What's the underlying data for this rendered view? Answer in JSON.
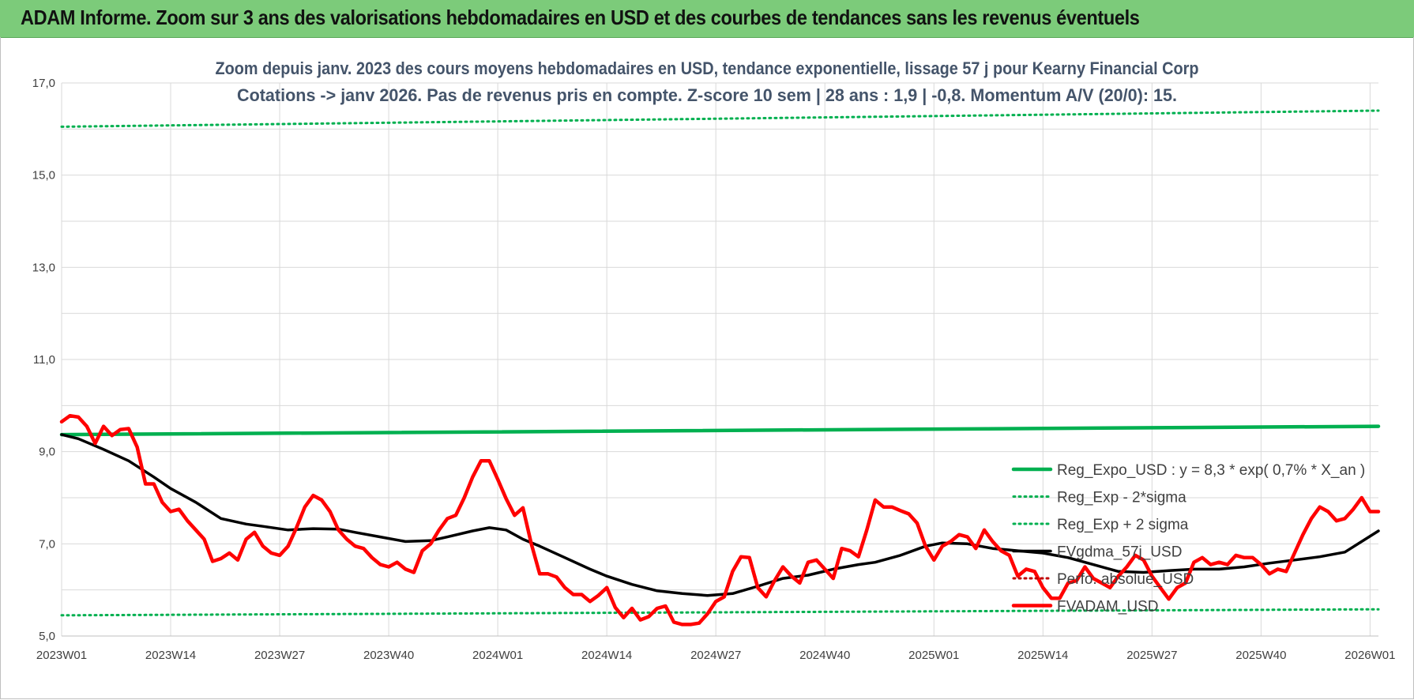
{
  "banner": {
    "title": "ADAM Informe. Zoom sur 3 ans des valorisations hebdomadaires en USD et des courbes de tendances sans les revenus éventuels"
  },
  "colors": {
    "banner": "#7ccb7a",
    "regression": "#00b050",
    "fvgdma": "#000000",
    "fvadam": "#ff0000",
    "perfo": "#c00000",
    "grid": "#d9d9d9"
  },
  "chart_data": {
    "type": "line",
    "title": "Zoom depuis janv. 2023 des cours moyens hebdomadaires en USD, tendance exponentielle, lissage 57 j pour Kearny Financial Corp",
    "subtitle": "Cotations -> janv 2026. Pas de revenus pris en compte. Z-score 10 sem | 28 ans : 1,9 | -0,8. Momentum A/V (20/0): 15.",
    "xlabel": "",
    "ylabel": "",
    "ylim": [
      5.0,
      17.0
    ],
    "y_ticks": [
      "5,0",
      "7,0",
      "9,0",
      "11,0",
      "13,0",
      "15,0",
      "17,0"
    ],
    "x_ticks": [
      "2023W01",
      "2023W14",
      "2023W27",
      "2023W40",
      "2024W01",
      "2024W14",
      "2024W27",
      "2024W40",
      "2025W01",
      "2025W14",
      "2025W27",
      "2025W40",
      "2026W01"
    ],
    "grid": true,
    "legend_position": "bottom-right",
    "series": [
      {
        "name": "Reg_Expo_USD : y = 8,3 * exp( 0,7% * X_an )",
        "style": "solid-thick",
        "color": "#00b050",
        "x": [
          0,
          157
        ],
        "y": [
          9.37,
          9.55
        ]
      },
      {
        "name": "Reg_Exp - 2*sigma",
        "style": "dotted",
        "color": "#00b050",
        "x": [
          0,
          157
        ],
        "y": [
          5.45,
          5.58
        ]
      },
      {
        "name": "Reg_Exp + 2 sigma",
        "style": "dotted",
        "color": "#00b050",
        "x": [
          0,
          157
        ],
        "y": [
          16.05,
          16.4
        ]
      },
      {
        "name": "FVgdma_57j_USD",
        "style": "solid",
        "color": "#000000",
        "x": [
          0,
          2,
          5,
          8,
          11,
          13,
          16,
          19,
          22,
          24,
          27,
          30,
          33,
          35,
          38,
          41,
          44,
          46,
          49,
          51,
          53,
          55,
          57,
          60,
          63,
          65,
          68,
          71,
          74,
          77,
          80,
          83,
          86,
          89,
          92,
          95,
          97,
          100,
          103,
          105,
          108,
          111,
          114,
          117,
          120,
          123,
          126,
          129,
          132,
          135,
          138,
          141,
          144,
          147,
          150,
          153,
          155,
          157
        ],
        "y": [
          9.37,
          9.28,
          9.05,
          8.8,
          8.45,
          8.2,
          7.9,
          7.55,
          7.43,
          7.38,
          7.3,
          7.33,
          7.32,
          7.25,
          7.15,
          7.05,
          7.07,
          7.15,
          7.28,
          7.35,
          7.3,
          7.1,
          6.95,
          6.7,
          6.45,
          6.3,
          6.12,
          5.98,
          5.92,
          5.88,
          5.92,
          6.08,
          6.25,
          6.32,
          6.45,
          6.55,
          6.6,
          6.75,
          6.95,
          7.02,
          7.0,
          6.9,
          6.85,
          6.8,
          6.7,
          6.55,
          6.4,
          6.38,
          6.42,
          6.45,
          6.45,
          6.5,
          6.58,
          6.65,
          6.72,
          6.82,
          7.05,
          7.28
        ]
      },
      {
        "name": "Perfo. absolue_USD",
        "style": "dotted",
        "color": "#c00000",
        "x": [],
        "y": []
      },
      {
        "name": "FVADAM_USD",
        "style": "solid-thick",
        "color": "#ff0000",
        "x": [
          0,
          1,
          2,
          3,
          4,
          5,
          6,
          7,
          8,
          9,
          10,
          11,
          12,
          13,
          14,
          15,
          16,
          17,
          18,
          19,
          20,
          21,
          22,
          23,
          24,
          25,
          26,
          27,
          28,
          29,
          30,
          31,
          32,
          33,
          34,
          35,
          36,
          37,
          38,
          39,
          40,
          41,
          42,
          43,
          44,
          45,
          46,
          47,
          48,
          49,
          50,
          51,
          52,
          53,
          54,
          55,
          56,
          57,
          58,
          59,
          60,
          61,
          62,
          63,
          64,
          65,
          66,
          67,
          68,
          69,
          70,
          71,
          72,
          73,
          74,
          75,
          76,
          77,
          78,
          79,
          80,
          81,
          82,
          83,
          84,
          85,
          86,
          87,
          88,
          89,
          90,
          91,
          92,
          93,
          94,
          95,
          96,
          97,
          98,
          99,
          100,
          101,
          102,
          103,
          104,
          105,
          106,
          107,
          108,
          109,
          110,
          111,
          112,
          113,
          114,
          115,
          116,
          117,
          118,
          119,
          120,
          121,
          122,
          123,
          124,
          125,
          126,
          127,
          128,
          129,
          130,
          131,
          132,
          133,
          134,
          135,
          136,
          137,
          138,
          139,
          140,
          141,
          142,
          143,
          144,
          145,
          146,
          147,
          148,
          149,
          150,
          151,
          152,
          153,
          154,
          155,
          156,
          157
        ],
        "y": [
          9.65,
          9.78,
          9.75,
          9.55,
          9.18,
          9.55,
          9.35,
          9.48,
          9.5,
          9.1,
          8.3,
          8.3,
          7.9,
          7.7,
          7.75,
          7.5,
          7.3,
          7.1,
          6.62,
          6.68,
          6.8,
          6.65,
          7.1,
          7.25,
          6.95,
          6.8,
          6.75,
          6.95,
          7.35,
          7.8,
          8.05,
          7.95,
          7.7,
          7.3,
          7.1,
          6.95,
          6.9,
          6.7,
          6.55,
          6.5,
          6.6,
          6.45,
          6.38,
          6.85,
          7.0,
          7.3,
          7.55,
          7.62,
          8.0,
          8.45,
          8.8,
          8.8,
          8.4,
          7.98,
          7.62,
          7.78,
          7.0,
          6.35,
          6.35,
          6.28,
          6.05,
          5.9,
          5.9,
          5.75,
          5.88,
          6.05,
          5.62,
          5.4,
          5.6,
          5.35,
          5.42,
          5.6,
          5.65,
          5.3,
          5.25,
          5.25,
          5.28,
          5.48,
          5.75,
          5.85,
          6.4,
          6.72,
          6.7,
          6.05,
          5.85,
          6.2,
          6.5,
          6.3,
          6.15,
          6.6,
          6.65,
          6.45,
          6.25,
          6.9,
          6.85,
          6.72,
          7.3,
          7.95,
          7.8,
          7.8,
          7.72,
          7.65,
          7.45,
          6.95,
          6.65,
          6.95,
          7.05,
          7.2,
          7.15,
          6.9,
          7.3,
          7.05,
          6.85,
          6.75,
          6.3,
          6.45,
          6.4,
          6.05,
          5.82,
          5.82,
          6.15,
          6.2,
          6.5,
          6.25,
          6.15,
          6.05,
          6.3,
          6.5,
          6.75,
          6.65,
          6.3,
          6.05,
          5.8,
          6.05,
          6.15,
          6.6,
          6.7,
          6.55,
          6.6,
          6.55,
          6.75,
          6.7,
          6.7,
          6.55,
          6.35,
          6.45,
          6.4,
          6.8,
          7.2,
          7.55,
          7.8,
          7.7,
          7.5,
          7.55,
          7.75,
          8.0,
          7.7,
          7.7
        ]
      }
    ]
  }
}
